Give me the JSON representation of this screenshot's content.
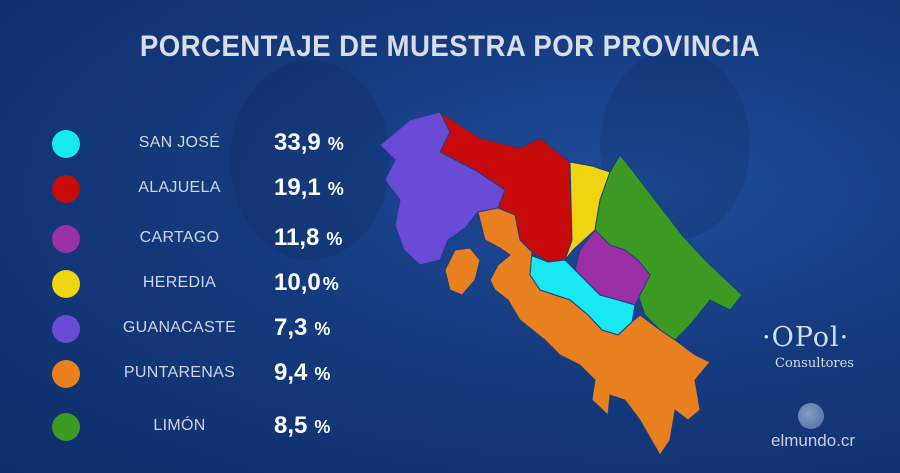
{
  "chart_data": {
    "type": "map",
    "title": "PORCENTAJE DE MUESTRA POR PROVINCIA",
    "series": [
      {
        "name": "SAN JOSÉ",
        "value": 33.9,
        "label": "33,9",
        "unit": "%",
        "color": "#17e8f2"
      },
      {
        "name": "ALAJUELA",
        "value": 19.1,
        "label": "19,1",
        "unit": "%",
        "color": "#c60a0a"
      },
      {
        "name": "CARTAGO",
        "value": 11.8,
        "label": "11,8",
        "unit": "%",
        "color": "#9b2fa6"
      },
      {
        "name": "HEREDIA",
        "value": 10.0,
        "label": "10,0",
        "unit": "%",
        "color": "#efd410"
      },
      {
        "name": "GUANACASTE",
        "value": 7.3,
        "label": "7,3",
        "unit": "%",
        "color": "#6a4bd6"
      },
      {
        "name": "PUNTARENAS",
        "value": 9.4,
        "label": "9,4",
        "unit": "%",
        "color": "#e8801f"
      },
      {
        "name": "LIMÓN",
        "value": 8.5,
        "label": "8,5",
        "unit": "%",
        "color": "#3a9a22"
      }
    ]
  },
  "branding": {
    "opol_logo": "·OPol·",
    "opol_sub": "Consultores",
    "source": "elmundo.cr"
  }
}
